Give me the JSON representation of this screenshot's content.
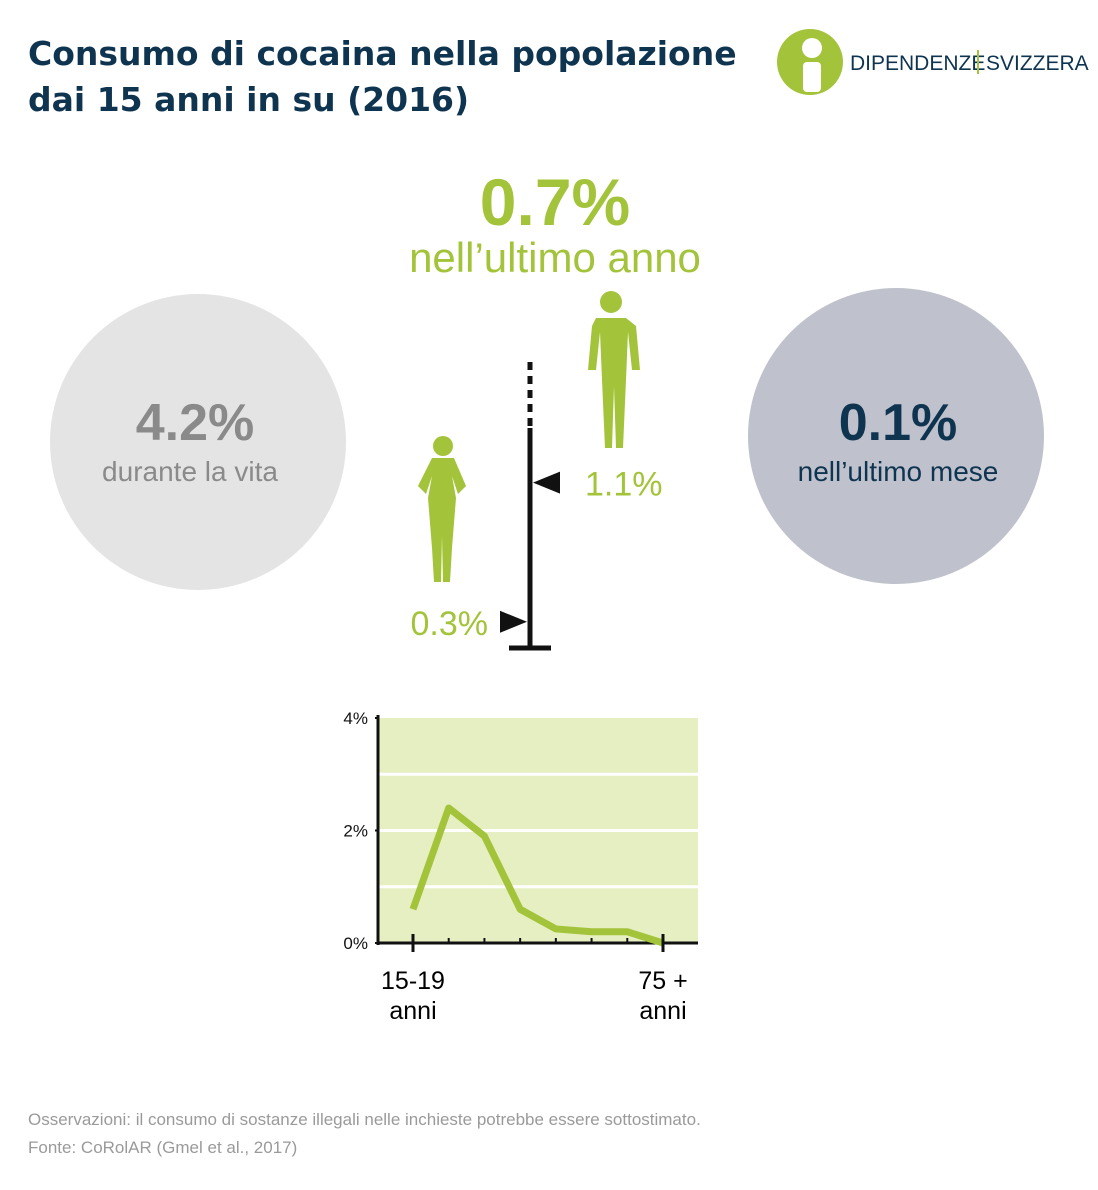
{
  "header": {
    "title_lines": [
      "Consumo di cocaina nella popolazione",
      "dai 15 anni in su (2016)"
    ],
    "logo": {
      "left": "DIPENDENZE",
      "right": "SVIZZERA"
    }
  },
  "stats": {
    "year": {
      "value": "0.7%",
      "label": "nell’ultimo anno"
    },
    "lifetime": {
      "value": "4.2%",
      "label": "durante la vita"
    },
    "month": {
      "value": "0.1%",
      "label": "nell’ultimo mese"
    }
  },
  "gender": {
    "values": [
      1.1,
      0.3
    ],
    "value_labels": [
      "1.1%",
      "0.3%"
    ]
  },
  "chart_data": {
    "type": "line",
    "color": "#a3c43a",
    "categories": [
      "15-19\nanni",
      null,
      null,
      null,
      null,
      null,
      null,
      "75 +\nanni"
    ],
    "values": [
      0.6,
      2.4,
      1.9,
      0.6,
      0.25,
      0.2,
      0.2,
      0.0
    ],
    "ylim": [
      0,
      4
    ],
    "yticks": [
      {
        "value": 0,
        "label": "0%"
      },
      {
        "value": 2,
        "label": "2%"
      },
      {
        "value": 4,
        "label": "4%"
      }
    ],
    "ygrid": [
      1,
      2,
      3
    ]
  },
  "footer": {
    "note": "Osservazioni: il consumo di sostanze illegali nelle inchieste potrebbe essere sottostimato.",
    "source": "Fonte: CoRolAR (Gmel et al., 2017)"
  }
}
